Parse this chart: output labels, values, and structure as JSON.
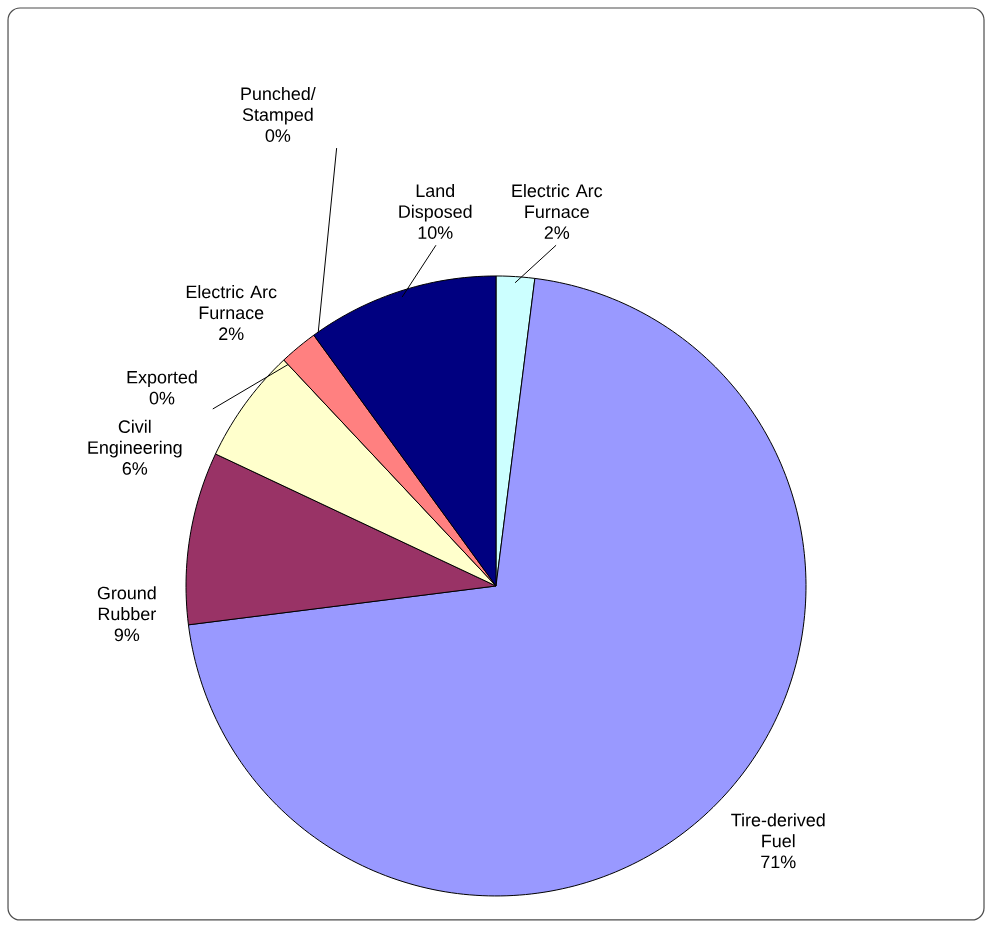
{
  "chart_data": {
    "type": "pie",
    "categories": [
      "Electric Arc Furnace",
      "Tire-derived Fuel",
      "Ground Rubber",
      "Civil Engineering",
      "Exported",
      "Electric Arc Furnace",
      "Punched/ Stamped",
      "Land Disposed"
    ],
    "values": [
      2,
      71,
      9,
      6,
      0,
      2,
      0,
      10
    ],
    "value_labels": [
      "2%",
      "71%",
      "9%",
      "6%",
      "0%",
      "2%",
      "0%",
      "10%"
    ],
    "colors": [
      "#ccffff",
      "#9999ff",
      "#993366",
      "#ffffcc",
      "#660066",
      "#ff8080",
      "#0066cc",
      "#000080"
    ]
  }
}
